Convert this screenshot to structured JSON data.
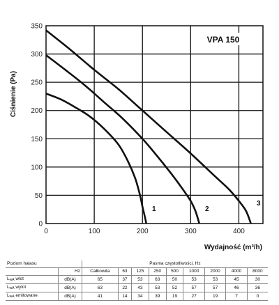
{
  "chart_data": {
    "type": "line",
    "title": "VPA 150",
    "xlabel": "Wydajność (m³/h)",
    "ylabel": "Ciśnienie (Pa)",
    "xlim": [
      0,
      450
    ],
    "ylim": [
      0,
      350
    ],
    "xticks": [
      0,
      100,
      200,
      300,
      400
    ],
    "yticks": [
      0,
      50,
      100,
      150,
      200,
      250,
      300,
      350
    ],
    "grid": true,
    "series": [
      {
        "name": "1",
        "x": [
          0,
          30,
          60,
          90,
          120,
          150,
          170,
          185,
          195,
          200,
          205,
          208
        ],
        "y": [
          230,
          220,
          206,
          190,
          168,
          140,
          110,
          80,
          50,
          30,
          12,
          0
        ]
      },
      {
        "name": "2",
        "x": [
          0,
          40,
          80,
          120,
          160,
          200,
          230,
          260,
          280,
          300,
          310,
          318
        ],
        "y": [
          298,
          272,
          245,
          215,
          185,
          150,
          120,
          88,
          65,
          40,
          22,
          0
        ]
      },
      {
        "name": "3",
        "x": [
          0,
          50,
          100,
          150,
          200,
          250,
          300,
          350,
          380,
          400,
          415,
          425
        ],
        "y": [
          342,
          308,
          272,
          238,
          200,
          162,
          124,
          84,
          60,
          40,
          22,
          0
        ]
      }
    ]
  },
  "table": {
    "header1": [
      "Poziom hałasu",
      "",
      "Pasma częstotliwości, Hz"
    ],
    "header2": [
      "",
      "Hz",
      "Całkowita",
      "63",
      "125",
      "250",
      "500",
      "1000",
      "2000",
      "4000",
      "8000"
    ],
    "rows": [
      {
        "label_main": "L",
        "label_sub": "wA",
        "label_rest": " wlot",
        "unit": "dB(A)",
        "values": [
          "65",
          "37",
          "53",
          "63",
          "50",
          "53",
          "53",
          "45",
          "30"
        ]
      },
      {
        "label_main": "L",
        "label_sub": "wA",
        "label_rest": " wylot",
        "unit": "dB(A)",
        "values": [
          "63",
          "22",
          "43",
          "53",
          "52",
          "57",
          "57",
          "46",
          "36"
        ]
      },
      {
        "label_main": "L",
        "label_sub": "wA",
        "label_rest": " emitowane",
        "unit": "dB(A)",
        "values": [
          "41",
          "14",
          "34",
          "39",
          "19",
          "27",
          "19",
          "7",
          "0"
        ]
      }
    ]
  }
}
